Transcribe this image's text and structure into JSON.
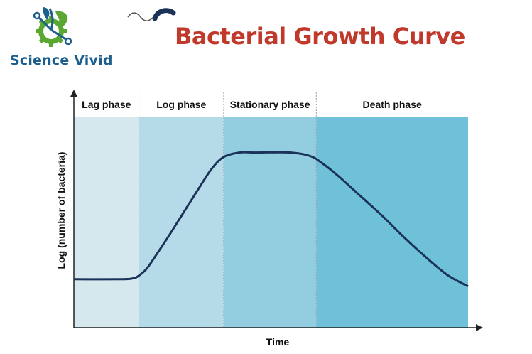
{
  "brand": {
    "name": "Science Vivid"
  },
  "chart_data": {
    "type": "line",
    "title": "Bacterial Growth Curve",
    "xlabel": "Time",
    "ylabel": "Log (number of bacteria)",
    "grid": false,
    "phases": [
      {
        "name": "Lag phase",
        "start": 0,
        "end": 1.65,
        "color": "#d4e8ee"
      },
      {
        "name": "Log phase",
        "start": 1.65,
        "end": 3.8,
        "color": "#b5dbe9"
      },
      {
        "name": "Stationary phase",
        "start": 3.8,
        "end": 6.15,
        "color": "#93cde0"
      },
      {
        "name": "Death phase",
        "start": 6.15,
        "end": 10,
        "color": "#6fc0d9"
      }
    ],
    "xlim": [
      0,
      10
    ],
    "ylim": [
      0,
      10
    ],
    "series": [
      {
        "color": "#1b3358",
        "x": [
          0,
          1.2,
          1.5,
          1.65,
          1.85,
          2.1,
          2.4,
          2.8,
          3.2,
          3.5,
          3.8,
          4.2,
          4.6,
          5.5,
          6.0,
          6.3,
          6.7,
          7.2,
          7.8,
          8.4,
          9.0,
          9.5,
          10.0
        ],
        "y": [
          2.0,
          2.0,
          2.05,
          2.2,
          2.6,
          3.4,
          4.4,
          5.8,
          7.2,
          8.2,
          8.85,
          9.1,
          9.1,
          9.1,
          8.9,
          8.5,
          7.8,
          6.8,
          5.6,
          4.3,
          3.1,
          2.2,
          1.6
        ]
      }
    ]
  }
}
